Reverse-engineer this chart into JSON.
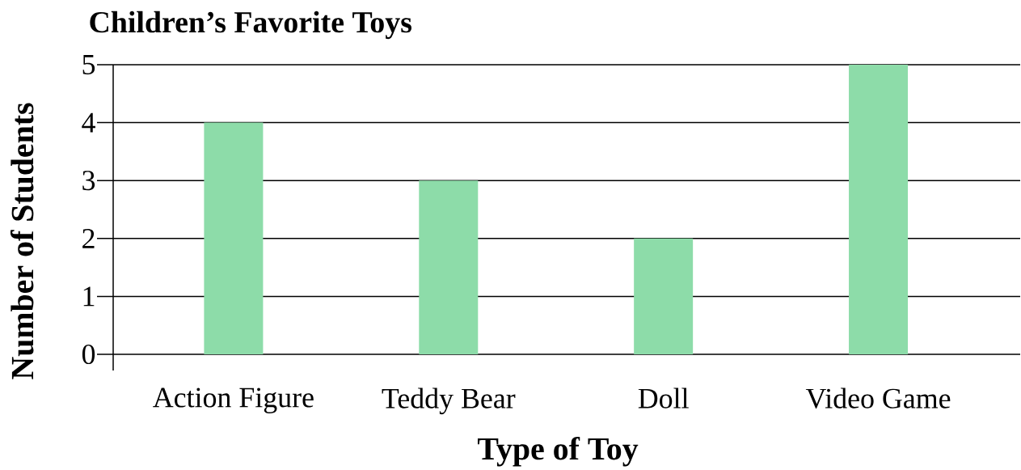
{
  "chart_data": {
    "type": "bar",
    "title": "Children’s Favorite Toys",
    "xlabel": "Type of Toy",
    "ylabel": "Number of Students",
    "categories": [
      "Action Figure",
      "Teddy Bear",
      "Doll",
      "Video Game"
    ],
    "values": [
      4,
      3,
      2,
      5
    ],
    "color": "#8ddca9",
    "ylim": [
      0,
      5
    ],
    "yticks": [
      0,
      1,
      2,
      3,
      4,
      5
    ],
    "grid": "y"
  }
}
